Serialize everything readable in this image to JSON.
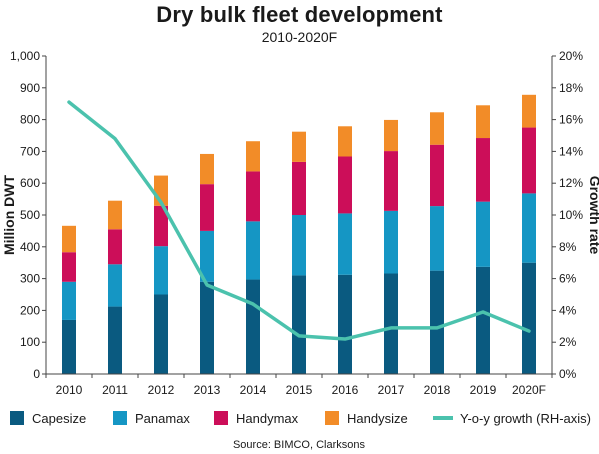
{
  "chart_data": {
    "type": "bar",
    "stacked": true,
    "title": "Dry bulk fleet development",
    "subtitle": "2010-2020F",
    "ylabel": "Million DWT",
    "y2label": "Growth rate",
    "ylim": [
      0,
      1000
    ],
    "y2lim": [
      0,
      20
    ],
    "yticks": [
      "0",
      "100",
      "200",
      "300",
      "400",
      "500",
      "600",
      "700",
      "800",
      "900",
      "1,000"
    ],
    "y2ticks": [
      "0%",
      "2%",
      "4%",
      "6%",
      "8%",
      "10%",
      "12%",
      "14%",
      "16%",
      "18%",
      "20%"
    ],
    "categories": [
      "2010",
      "2011",
      "2012",
      "2013",
      "2014",
      "2015",
      "2016",
      "2017",
      "2018",
      "2019",
      "2020F"
    ],
    "series": [
      {
        "name": "Capesize",
        "color": "#0a5a80",
        "values": [
          170,
          212,
          250,
          290,
          297,
          310,
          312,
          316,
          325,
          337,
          350
        ]
      },
      {
        "name": "Panamax",
        "color": "#1596c4",
        "values": [
          120,
          133,
          152,
          160,
          183,
          190,
          193,
          197,
          203,
          205,
          218
        ]
      },
      {
        "name": "Handymax",
        "color": "#cc0e59",
        "values": [
          93,
          110,
          127,
          147,
          157,
          167,
          179,
          188,
          193,
          200,
          207
        ]
      },
      {
        "name": "Handysize",
        "color": "#f28c28",
        "values": [
          83,
          90,
          95,
          95,
          95,
          95,
          95,
          98,
          102,
          103,
          103
        ]
      }
    ],
    "line_series": {
      "name": "Y-o-y growth (RH-axis)",
      "color": "#4bc2ad",
      "axis": "right",
      "values": [
        17.1,
        14.8,
        10.8,
        5.6,
        4.4,
        2.4,
        2.2,
        2.9,
        2.9,
        3.9,
        2.7
      ]
    },
    "grid": false,
    "legend": "bottom"
  },
  "source": "Source: BIMCO, Clarksons"
}
